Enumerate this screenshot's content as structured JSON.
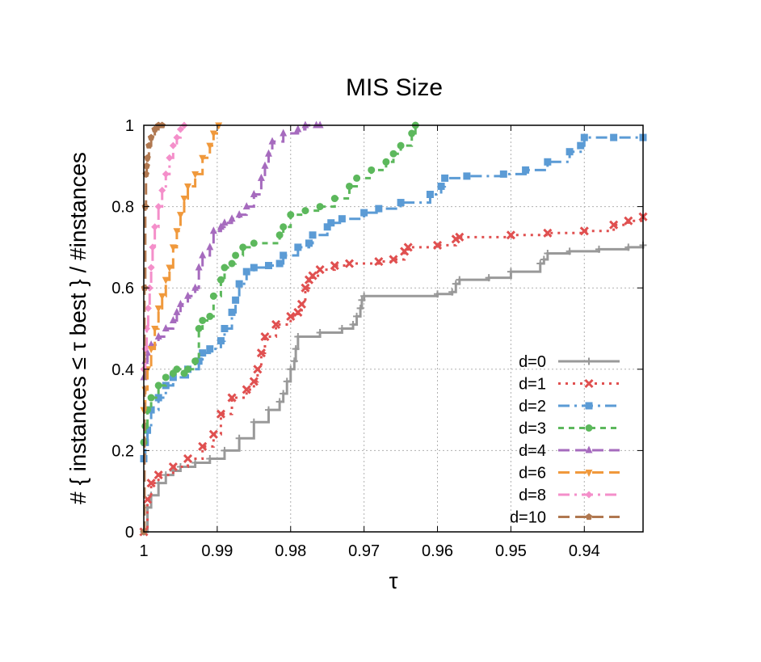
{
  "chart_data": {
    "type": "line",
    "title": "MIS Size",
    "xlabel": "τ",
    "ylabel": "# { instances ≤ τ best } / #instances",
    "xlim": [
      1.0,
      0.932
    ],
    "ylim": [
      0,
      1
    ],
    "x_reversed": true,
    "xticks": [
      1.0,
      0.99,
      0.98,
      0.97,
      0.96,
      0.95,
      0.94
    ],
    "xtick_labels": [
      "1",
      "0.99",
      "0.98",
      "0.97",
      "0.96",
      "0.95",
      "0.94"
    ],
    "yticks": [
      0,
      0.2,
      0.4,
      0.6,
      0.8,
      1.0
    ],
    "ytick_labels": [
      "0",
      "0.2",
      "0.4",
      "0.6",
      "0.8",
      "1"
    ],
    "grid": true,
    "legend_position": "bottom-right",
    "series": [
      {
        "name": "d=0",
        "color": "#999999",
        "dash": "solid",
        "marker": "plus",
        "x": [
          1.0,
          0.9995,
          0.999,
          0.998,
          0.997,
          0.996,
          0.995,
          0.993,
          0.991,
          0.989,
          0.987,
          0.985,
          0.983,
          0.9815,
          0.981,
          0.9805,
          0.98,
          0.9795,
          0.9793,
          0.979,
          0.976,
          0.973,
          0.9715,
          0.971,
          0.9705,
          0.9703,
          0.97,
          0.96,
          0.958,
          0.9575,
          0.957,
          0.953,
          0.95,
          0.946,
          0.9455,
          0.945,
          0.942,
          0.938,
          0.934,
          0.932
        ],
        "y": [
          0.0,
          0.06,
          0.09,
          0.12,
          0.14,
          0.15,
          0.16,
          0.17,
          0.18,
          0.2,
          0.23,
          0.27,
          0.3,
          0.32,
          0.34,
          0.37,
          0.4,
          0.42,
          0.45,
          0.48,
          0.49,
          0.5,
          0.51,
          0.53,
          0.55,
          0.57,
          0.58,
          0.585,
          0.59,
          0.61,
          0.62,
          0.625,
          0.64,
          0.66,
          0.67,
          0.685,
          0.69,
          0.695,
          0.7,
          0.705
        ]
      },
      {
        "name": "d=1",
        "color": "#e05050",
        "dash": "dot",
        "marker": "x",
        "x": [
          1.0,
          0.9995,
          0.999,
          0.998,
          0.996,
          0.994,
          0.992,
          0.9905,
          0.9895,
          0.988,
          0.986,
          0.985,
          0.9845,
          0.984,
          0.9835,
          0.982,
          0.98,
          0.979,
          0.9785,
          0.978,
          0.9775,
          0.977,
          0.976,
          0.974,
          0.972,
          0.968,
          0.966,
          0.9645,
          0.964,
          0.96,
          0.9575,
          0.957,
          0.95,
          0.945,
          0.94,
          0.936,
          0.934,
          0.932
        ],
        "y": [
          0.0,
          0.08,
          0.12,
          0.14,
          0.16,
          0.18,
          0.21,
          0.24,
          0.29,
          0.33,
          0.35,
          0.37,
          0.4,
          0.44,
          0.48,
          0.51,
          0.53,
          0.54,
          0.56,
          0.6,
          0.62,
          0.63,
          0.645,
          0.655,
          0.66,
          0.665,
          0.67,
          0.69,
          0.7,
          0.705,
          0.72,
          0.725,
          0.73,
          0.735,
          0.74,
          0.755,
          0.765,
          0.775
        ]
      },
      {
        "name": "d=2",
        "color": "#5b9bd5",
        "dash": "dashdot",
        "marker": "square",
        "x": [
          1.0,
          0.9998,
          0.9995,
          0.999,
          0.998,
          0.997,
          0.996,
          0.994,
          0.9925,
          0.992,
          0.991,
          0.9895,
          0.989,
          0.988,
          0.9875,
          0.987,
          0.986,
          0.985,
          0.983,
          0.9815,
          0.981,
          0.979,
          0.9775,
          0.977,
          0.975,
          0.9745,
          0.973,
          0.97,
          0.968,
          0.965,
          0.961,
          0.9595,
          0.959,
          0.956,
          0.951,
          0.948,
          0.945,
          0.942,
          0.9405,
          0.94,
          0.936,
          0.932
        ],
        "y": [
          0.18,
          0.22,
          0.25,
          0.3,
          0.33,
          0.36,
          0.38,
          0.4,
          0.42,
          0.44,
          0.45,
          0.47,
          0.5,
          0.54,
          0.57,
          0.61,
          0.64,
          0.65,
          0.655,
          0.66,
          0.68,
          0.7,
          0.71,
          0.73,
          0.75,
          0.76,
          0.77,
          0.785,
          0.795,
          0.81,
          0.83,
          0.85,
          0.87,
          0.875,
          0.88,
          0.89,
          0.91,
          0.935,
          0.95,
          0.97,
          0.97,
          0.97
        ]
      },
      {
        "name": "d=3",
        "color": "#5cb85c",
        "dash": "dash",
        "marker": "circle",
        "x": [
          1.0,
          0.9998,
          0.9995,
          0.999,
          0.998,
          0.997,
          0.996,
          0.9955,
          0.9945,
          0.994,
          0.993,
          0.9925,
          0.992,
          0.991,
          0.9905,
          0.9895,
          0.989,
          0.988,
          0.9875,
          0.9865,
          0.985,
          0.9815,
          0.981,
          0.98,
          0.978,
          0.976,
          0.974,
          0.972,
          0.971,
          0.969,
          0.967,
          0.966,
          0.965,
          0.9635,
          0.963
        ],
        "y": [
          0.22,
          0.26,
          0.3,
          0.33,
          0.36,
          0.38,
          0.39,
          0.4,
          0.39,
          0.4,
          0.42,
          0.5,
          0.52,
          0.53,
          0.58,
          0.62,
          0.65,
          0.66,
          0.68,
          0.7,
          0.71,
          0.73,
          0.75,
          0.78,
          0.79,
          0.8,
          0.82,
          0.85,
          0.87,
          0.89,
          0.91,
          0.93,
          0.95,
          0.98,
          1.0
        ]
      },
      {
        "name": "d=4",
        "color": "#a66bbe",
        "dash": "longdash",
        "marker": "triangle",
        "x": [
          1.0,
          0.9998,
          0.9995,
          0.999,
          0.998,
          0.997,
          0.996,
          0.9955,
          0.995,
          0.994,
          0.993,
          0.9925,
          0.992,
          0.991,
          0.9905,
          0.9895,
          0.989,
          0.988,
          0.987,
          0.986,
          0.985,
          0.984,
          0.9835,
          0.983,
          0.9825,
          0.981,
          0.979,
          0.978,
          0.9765,
          0.976
        ],
        "y": [
          0.38,
          0.42,
          0.44,
          0.46,
          0.48,
          0.5,
          0.52,
          0.54,
          0.56,
          0.58,
          0.6,
          0.65,
          0.68,
          0.7,
          0.74,
          0.75,
          0.76,
          0.77,
          0.78,
          0.8,
          0.83,
          0.87,
          0.9,
          0.93,
          0.96,
          0.98,
          0.99,
          1.0,
          1.0,
          1.0
        ]
      },
      {
        "name": "d=6",
        "color": "#f0993c",
        "dash": "longdash",
        "marker": "triangle-down",
        "x": [
          1.0,
          0.9998,
          0.9995,
          0.999,
          0.9985,
          0.998,
          0.9975,
          0.997,
          0.9965,
          0.996,
          0.9955,
          0.995,
          0.9945,
          0.994,
          0.993,
          0.992,
          0.991,
          0.9905,
          0.9898
        ],
        "y": [
          0.3,
          0.35,
          0.4,
          0.45,
          0.5,
          0.55,
          0.58,
          0.62,
          0.65,
          0.7,
          0.74,
          0.78,
          0.82,
          0.85,
          0.88,
          0.92,
          0.95,
          0.98,
          1.0
        ]
      },
      {
        "name": "d=8",
        "color": "#f48fca",
        "dash": "dashdot",
        "marker": "diamond",
        "x": [
          1.0,
          0.9998,
          0.9996,
          0.9994,
          0.9992,
          0.999,
          0.9988,
          0.9985,
          0.998,
          0.9975,
          0.997,
          0.9965,
          0.996,
          0.9955,
          0.995,
          0.9945
        ],
        "y": [
          0.4,
          0.45,
          0.5,
          0.55,
          0.6,
          0.65,
          0.7,
          0.75,
          0.8,
          0.84,
          0.88,
          0.92,
          0.95,
          0.97,
          0.99,
          1.0
        ]
      },
      {
        "name": "d=10",
        "color": "#b07850",
        "dash": "longdash",
        "marker": "pentagon",
        "x": [
          1.0,
          0.9999,
          0.9998,
          0.9997,
          0.9996,
          0.9995,
          0.9993,
          0.999,
          0.9985,
          0.998,
          0.9975
        ],
        "y": [
          0.0,
          0.6,
          0.8,
          0.88,
          0.9,
          0.92,
          0.95,
          0.97,
          0.99,
          1.0,
          1.0
        ]
      }
    ]
  }
}
